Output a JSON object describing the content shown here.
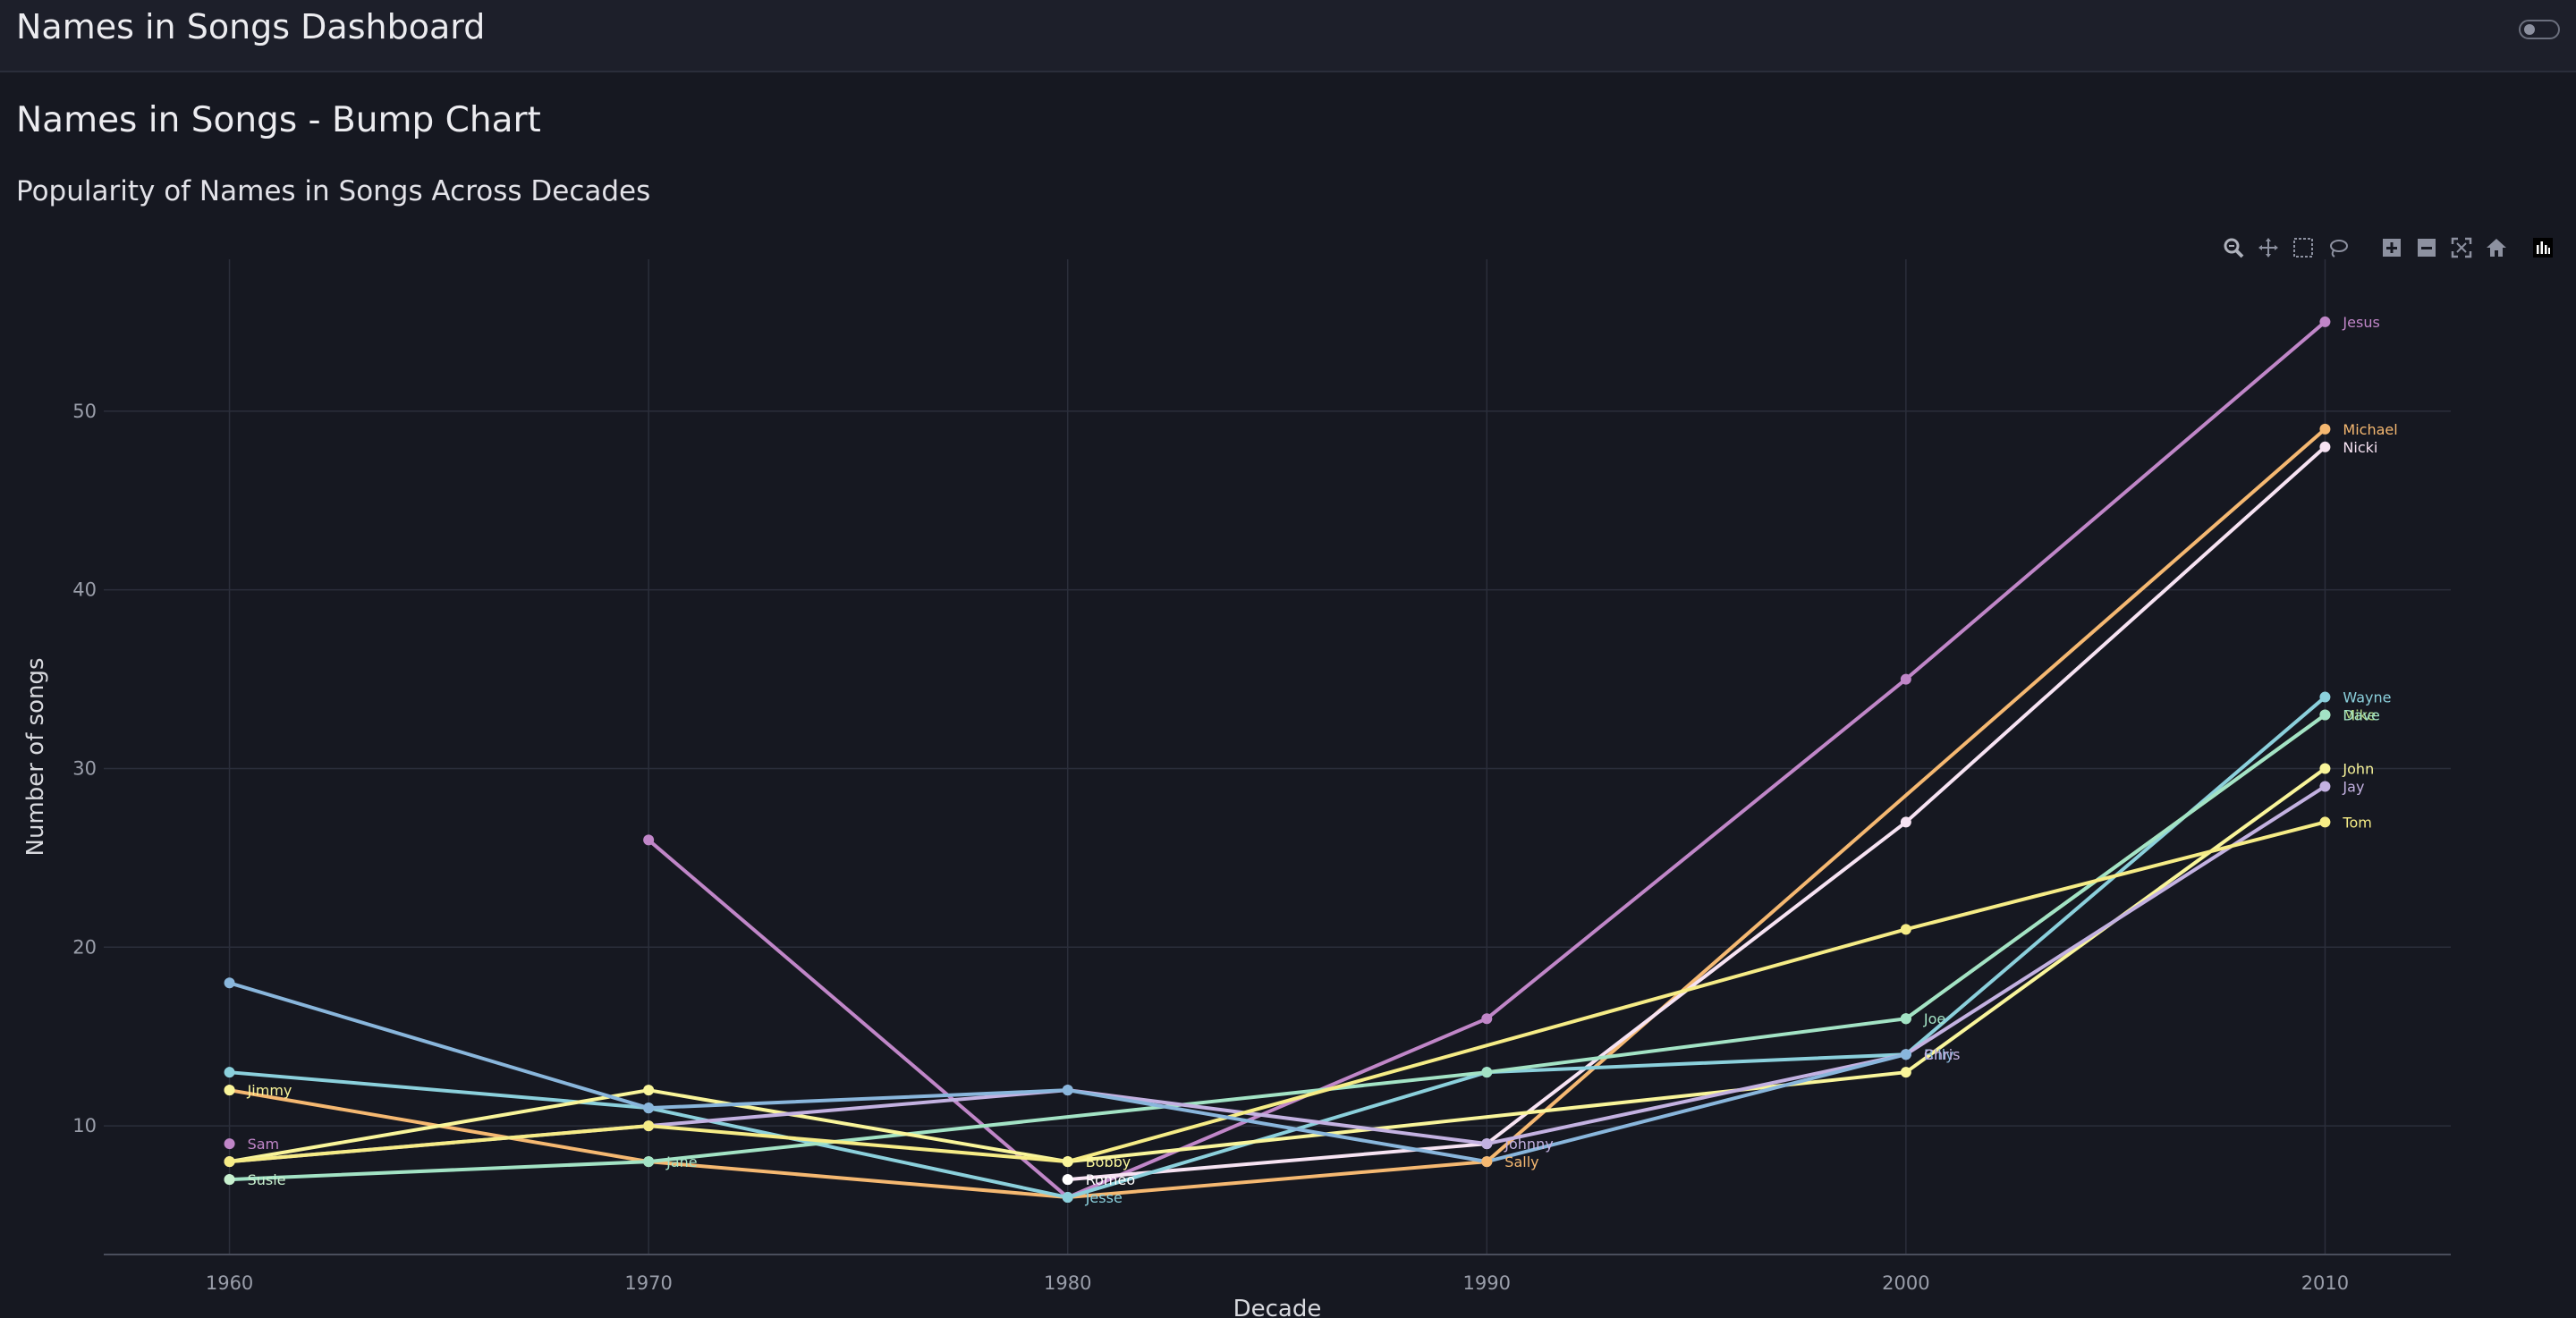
{
  "app": {
    "title": "Names in Songs Dashboard"
  },
  "page": {
    "title": "Names in Songs - Bump Chart"
  },
  "modebar_icons": [
    "zoom-icon",
    "pan-icon",
    "box-select-icon",
    "lasso-icon",
    "zoom-in-icon",
    "zoom-out-icon",
    "autoscale-icon",
    "reset-axes-icon",
    "plotly-logo-icon"
  ],
  "chart_data": {
    "type": "line",
    "title": "Popularity of Names in Songs Across Decades",
    "xlabel": "Decade",
    "ylabel": "Number of songs",
    "x_ticks": [
      1960,
      1970,
      1980,
      1990,
      2000,
      2010
    ],
    "y_ticks": [
      10,
      20,
      30,
      40,
      50
    ],
    "xlim": [
      1957,
      2013
    ],
    "ylim": [
      2.8,
      58.5
    ],
    "grid": true,
    "legend": "none",
    "series": [
      {
        "name": "Jesus",
        "color": "#c086c8",
        "x": [
          1970,
          1980,
          1990,
          2000,
          2010
        ],
        "y": [
          26,
          6,
          16,
          35,
          55
        ]
      },
      {
        "name": "Michael",
        "color": "#f5b871",
        "x": [
          1960,
          1970,
          1980,
          1990,
          2010
        ],
        "y": [
          12,
          8,
          6,
          8,
          49
        ]
      },
      {
        "name": "Nicki",
        "color": "#f7e3f3",
        "x": [
          1980,
          1990,
          2000,
          2010
        ],
        "y": [
          7,
          9,
          27,
          48
        ]
      },
      {
        "name": "Wayne",
        "color": "#8bd0dc",
        "x": [
          1960,
          1970,
          1980,
          1990,
          2000,
          2010
        ],
        "y": [
          13,
          11,
          6,
          13,
          14,
          34
        ]
      },
      {
        "name": "Mike",
        "color": "#b6dc85",
        "x": [
          2000,
          2010
        ],
        "y": [
          16,
          33
        ]
      },
      {
        "name": "Dave",
        "color": "#a3e3c5",
        "x": [
          1960,
          1970,
          1990,
          2000,
          2010
        ],
        "y": [
          7,
          8,
          13,
          16,
          33
        ]
      },
      {
        "name": "John",
        "color": "#f9f59a",
        "x": [
          1960,
          1970,
          1980,
          2000,
          2010
        ],
        "y": [
          8,
          12,
          8,
          13,
          30
        ]
      },
      {
        "name": "Jay",
        "color": "#c3b1e1",
        "x": [
          1960,
          1970,
          1980,
          1990,
          2000,
          2010
        ],
        "y": [
          8,
          10,
          12,
          9,
          14,
          29
        ]
      },
      {
        "name": "Tom",
        "color": "#f6ec86",
        "x": [
          1960,
          1970,
          1980,
          2000,
          2010
        ],
        "y": [
          8,
          10,
          8,
          21,
          27
        ]
      },
      {
        "name": "Billy",
        "color": "#89b6dc",
        "x": [
          1960,
          1970,
          1980,
          1990,
          2000
        ],
        "y": [
          18,
          11,
          12,
          8,
          14
        ]
      },
      {
        "name": "Sam",
        "color": "#c086c8",
        "x": [
          1960
        ],
        "y": [
          9
        ]
      },
      {
        "name": "Jimmy",
        "color": "#f9f59a",
        "x": [
          1960
        ],
        "y": [
          12
        ]
      },
      {
        "name": "Susie",
        "color": "#c8f0cf",
        "x": [
          1960
        ],
        "y": [
          7
        ]
      },
      {
        "name": "Jane",
        "color": "#a3e3c5",
        "x": [
          1970
        ],
        "y": [
          8
        ]
      },
      {
        "name": "Bobby",
        "color": "#f9f59a",
        "x": [
          1980
        ],
        "y": [
          8
        ]
      },
      {
        "name": "Romeo",
        "color": "#ffffff",
        "x": [
          1980
        ],
        "y": [
          7
        ]
      },
      {
        "name": "Jesse",
        "color": "#8bd0dc",
        "x": [
          1980
        ],
        "y": [
          6
        ]
      },
      {
        "name": "Johnny",
        "color": "#c3b1e1",
        "x": [
          1990
        ],
        "y": [
          9
        ]
      },
      {
        "name": "Sally",
        "color": "#f5b871",
        "x": [
          1990
        ],
        "y": [
          8
        ]
      },
      {
        "name": "Joe",
        "color": "#a3e3c5",
        "x": [
          2000
        ],
        "y": [
          16
        ]
      }
    ],
    "point_labels": [
      {
        "text": "Jesus",
        "x": 2010,
        "y": 55,
        "color": "#c086c8"
      },
      {
        "text": "Michael",
        "x": 2010,
        "y": 49,
        "color": "#f5b871"
      },
      {
        "text": "Nicki",
        "x": 2010,
        "y": 48,
        "color": "#f7e3f3"
      },
      {
        "text": "Wayne",
        "x": 2010,
        "y": 34,
        "color": "#8bd0dc"
      },
      {
        "text": "Mike",
        "x": 2010,
        "y": 33,
        "color": "#b6dc85"
      },
      {
        "text": "Dave",
        "x": 2010,
        "y": 33,
        "color": "#a3e3c5"
      },
      {
        "text": "John",
        "x": 2010,
        "y": 30,
        "color": "#f9f59a"
      },
      {
        "text": "Jay",
        "x": 2010,
        "y": 29,
        "color": "#c3b1e1"
      },
      {
        "text": "Tom",
        "x": 2010,
        "y": 27,
        "color": "#f6ec86"
      },
      {
        "text": "Joe",
        "x": 2000,
        "y": 16,
        "color": "#a3e3c5"
      },
      {
        "text": "Billy",
        "x": 2000,
        "y": 14,
        "color": "#89b6dc"
      },
      {
        "text": "Chris",
        "x": 2000,
        "y": 14,
        "color": "#c3b1e1"
      },
      {
        "text": "Johnny",
        "x": 1990,
        "y": 9,
        "color": "#c3b1e1"
      },
      {
        "text": "Sally",
        "x": 1990,
        "y": 8,
        "color": "#f5b871"
      },
      {
        "text": "Bobby",
        "x": 1980,
        "y": 8,
        "color": "#f9f59a"
      },
      {
        "text": "Romeo",
        "x": 1980,
        "y": 7,
        "color": "#ffffff"
      },
      {
        "text": "Jesse",
        "x": 1980,
        "y": 6,
        "color": "#8bd0dc"
      },
      {
        "text": "Jane",
        "x": 1970,
        "y": 8,
        "color": "#a3e3c5"
      },
      {
        "text": "Jimmy",
        "x": 1960,
        "y": 12,
        "color": "#f9f59a"
      },
      {
        "text": "Sam",
        "x": 1960,
        "y": 9,
        "color": "#c086c8"
      },
      {
        "text": "Susie",
        "x": 1960,
        "y": 7,
        "color": "#c8f0cf"
      }
    ]
  }
}
